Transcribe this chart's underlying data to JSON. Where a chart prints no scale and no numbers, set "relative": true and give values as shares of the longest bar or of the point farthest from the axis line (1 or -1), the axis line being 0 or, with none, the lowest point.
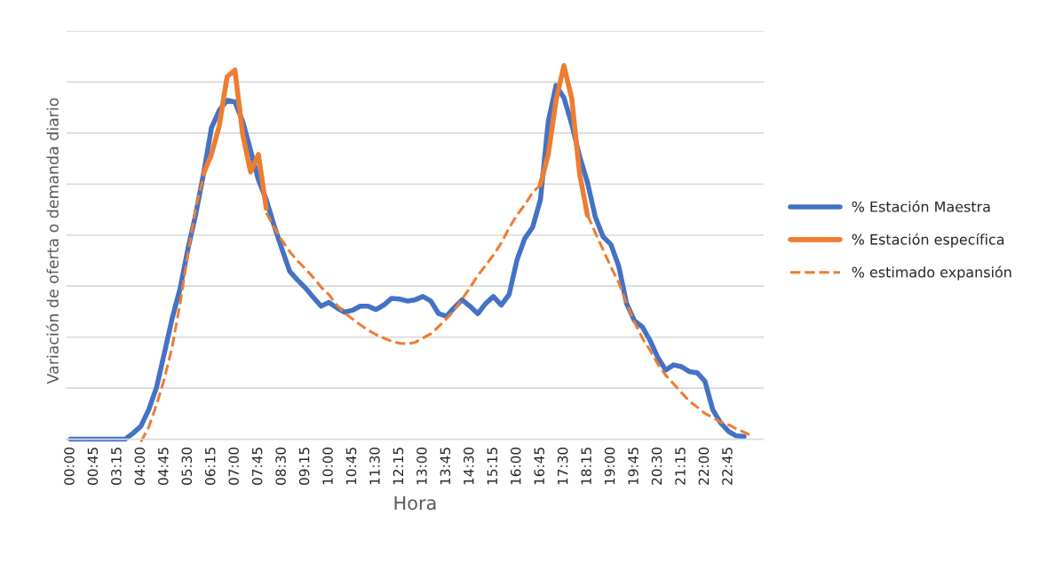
{
  "chart_data": {
    "type": "line",
    "relative": true,
    "xlabel": "Hora",
    "ylabel": "Variación de oferta o demanda diario",
    "grid": "y",
    "legend": "right",
    "categories": [
      "00:00",
      null,
      null,
      "00:45",
      null,
      null,
      "03:15",
      null,
      null,
      "04:00",
      null,
      null,
      "04:45",
      null,
      null,
      "05:30",
      null,
      null,
      "06:15",
      null,
      null,
      "07:00",
      null,
      null,
      "07:45",
      null,
      null,
      "08:30",
      null,
      null,
      "09:15",
      null,
      null,
      "10:00",
      null,
      null,
      "10:45",
      null,
      null,
      "11:30",
      null,
      null,
      "12:15",
      null,
      null,
      "13:00",
      null,
      null,
      "13:45",
      null,
      null,
      "14:30",
      null,
      null,
      "15:15",
      null,
      null,
      "16:00",
      null,
      null,
      "16:45",
      null,
      null,
      "17:30",
      null,
      null,
      "18:15",
      null,
      null,
      "19:00",
      null,
      null,
      "19:45",
      null,
      null,
      "20:30",
      null,
      null,
      "21:15",
      null,
      null,
      "22:00",
      null,
      null,
      "22:45",
      null,
      null,
      null
    ],
    "series": [
      {
        "name": "% Estación Maestra",
        "color": "#4472c4",
        "line_style": "solid",
        "values": [
          0,
          0,
          0,
          0,
          0,
          0,
          0,
          0,
          0.016,
          0.035,
          0.079,
          0.139,
          0.231,
          0.324,
          0.403,
          0.509,
          0.602,
          0.711,
          0.833,
          0.88,
          0.907,
          0.903,
          0.85,
          0.773,
          0.694,
          0.641,
          0.572,
          0.509,
          0.449,
          0.426,
          0.405,
          0.38,
          0.356,
          0.366,
          0.352,
          0.34,
          0.345,
          0.356,
          0.356,
          0.347,
          0.359,
          0.377,
          0.375,
          0.37,
          0.373,
          0.382,
          0.37,
          0.336,
          0.329,
          0.352,
          0.373,
          0.356,
          0.336,
          0.363,
          0.382,
          0.359,
          0.387,
          0.479,
          0.537,
          0.567,
          0.641,
          0.85,
          0.947,
          0.914,
          0.843,
          0.757,
          0.688,
          0.595,
          0.542,
          0.521,
          0.463,
          0.363,
          0.317,
          0.301,
          0.264,
          0.218,
          0.185,
          0.199,
          0.194,
          0.181,
          0.178,
          0.155,
          0.079,
          0.044,
          0.021,
          0.009,
          0.007,
          null
        ]
      },
      {
        "name": "% Estación específica",
        "color": "#ed7d31",
        "line_style": "solid",
        "values": [
          null,
          null,
          null,
          null,
          null,
          null,
          null,
          null,
          null,
          null,
          null,
          null,
          null,
          null,
          null,
          null,
          null,
          0.711,
          0.762,
          0.838,
          0.97,
          0.988,
          0.815,
          0.715,
          0.762,
          0.618,
          null,
          null,
          null,
          null,
          null,
          null,
          null,
          null,
          null,
          null,
          null,
          null,
          null,
          null,
          null,
          null,
          null,
          null,
          null,
          null,
          null,
          null,
          null,
          null,
          null,
          null,
          null,
          null,
          null,
          null,
          null,
          null,
          null,
          null,
          0.681,
          0.762,
          0.907,
          1.0,
          0.912,
          0.711,
          0.6,
          null,
          null,
          null,
          null,
          null,
          null,
          null,
          null,
          null,
          null,
          null,
          null,
          null,
          null,
          null,
          null,
          null,
          null,
          null,
          null,
          null
        ]
      },
      {
        "name": "% estimado expansión",
        "color": "#ed7d31",
        "line_style": "dashed",
        "values": [
          null,
          null,
          null,
          null,
          null,
          null,
          null,
          null,
          null,
          -0.007,
          0.032,
          0.093,
          0.162,
          0.248,
          0.363,
          0.495,
          0.618,
          0.704,
          null,
          null,
          null,
          null,
          null,
          null,
          null,
          0.606,
          0.567,
          0.532,
          0.502,
          0.477,
          0.456,
          0.433,
          0.407,
          0.387,
          0.359,
          0.338,
          0.322,
          0.306,
          0.292,
          0.28,
          0.271,
          0.262,
          0.257,
          0.255,
          0.259,
          0.271,
          0.282,
          0.301,
          0.322,
          0.345,
          0.375,
          0.405,
          0.438,
          0.465,
          0.493,
          0.525,
          0.565,
          0.6,
          0.627,
          0.66,
          0.681,
          null,
          null,
          null,
          null,
          null,
          0.6,
          0.553,
          0.507,
          0.461,
          0.419,
          0.363,
          0.313,
          0.271,
          0.238,
          0.201,
          0.171,
          0.148,
          0.125,
          0.102,
          0.086,
          0.069,
          0.058,
          0.046,
          0.039,
          0.028,
          0.019,
          0.009
        ]
      }
    ]
  }
}
